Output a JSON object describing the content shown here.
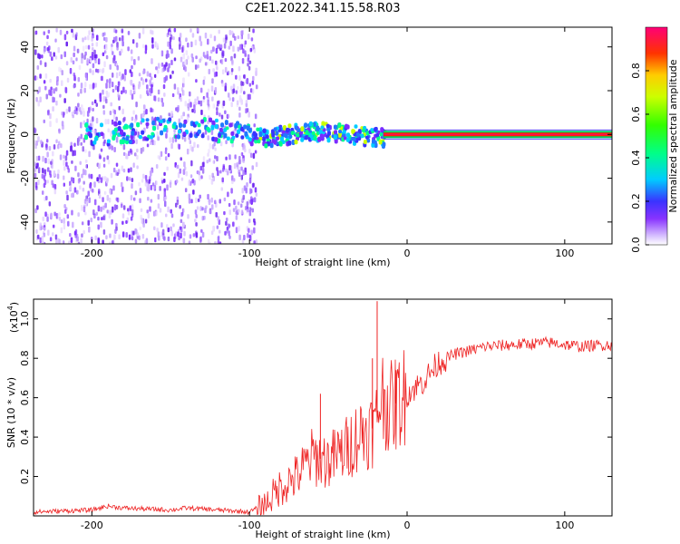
{
  "title": "C2E1.2022.341.15.58.R03",
  "chart_data": [
    {
      "type": "heatmap",
      "title": "",
      "xlabel": "Height of straight line (km)",
      "ylabel": "Frequency (Hz)",
      "xlim": [
        -237,
        130
      ],
      "ylim": [
        -50,
        49
      ],
      "xticks": [
        -200,
        -100,
        0,
        100
      ],
      "yticks": [
        -40,
        -20,
        0,
        20,
        40
      ],
      "colorbar": {
        "label": "Normalized spectral amplitude",
        "range": [
          0,
          1
        ],
        "ticks": [
          "0.0",
          "0.2",
          "0.4",
          "0.6",
          "0.8"
        ]
      },
      "features": [
        {
          "name": "scattered noise",
          "x_range": [
            -237,
            -96
          ],
          "y_range": [
            -50,
            49
          ]
        },
        {
          "name": "weak signal band",
          "x_range": [
            -205,
            -96
          ],
          "y_center": 2,
          "y_halfwidth": 5
        },
        {
          "name": "signal band",
          "x_range": [
            -96,
            -15
          ],
          "y_center": 0,
          "y_halfwidth": 4
        },
        {
          "name": "strong tone",
          "x_range": [
            -15,
            130
          ],
          "y_center": 0,
          "amplitude": 1.0
        }
      ]
    },
    {
      "type": "line",
      "title": "",
      "xlabel": "Height of straight line (km)",
      "ylabel": "SNR (10 * v/v)",
      "multiplier_label": "(x10",
      "multiplier_exp": "4",
      "xlim": [
        -237,
        130
      ],
      "ylim": [
        0.0,
        1.1
      ],
      "xticks": [
        -200,
        -100,
        0,
        100
      ],
      "yticks": [
        0.2,
        0.4,
        0.6,
        0.8,
        1.0
      ],
      "ytick_labels": [
        "0.2",
        "0.4",
        "0.6",
        "0.8",
        "1.0"
      ],
      "color": "#ee2222",
      "series": [
        {
          "x": [
            -237,
            -200,
            -190,
            -180,
            -150,
            -140,
            -120,
            -100,
            -90,
            -80,
            -70,
            -60,
            -50,
            -40,
            -30,
            -20,
            -17,
            -10,
            0,
            10,
            20,
            30,
            50,
            70,
            90,
            110,
            130
          ],
          "y": [
            0.02,
            0.03,
            0.05,
            0.04,
            0.03,
            0.04,
            0.03,
            0.02,
            0.06,
            0.15,
            0.2,
            0.3,
            0.28,
            0.33,
            0.42,
            0.45,
            0.62,
            0.55,
            0.62,
            0.68,
            0.78,
            0.82,
            0.86,
            0.87,
            0.88,
            0.86,
            0.87
          ]
        }
      ],
      "spikes": [
        {
          "x": -55,
          "y": 0.62
        },
        {
          "x": -22,
          "y": 0.8
        },
        {
          "x": -19,
          "y": 1.09
        },
        {
          "x": -7,
          "y": 0.74
        }
      ]
    }
  ]
}
